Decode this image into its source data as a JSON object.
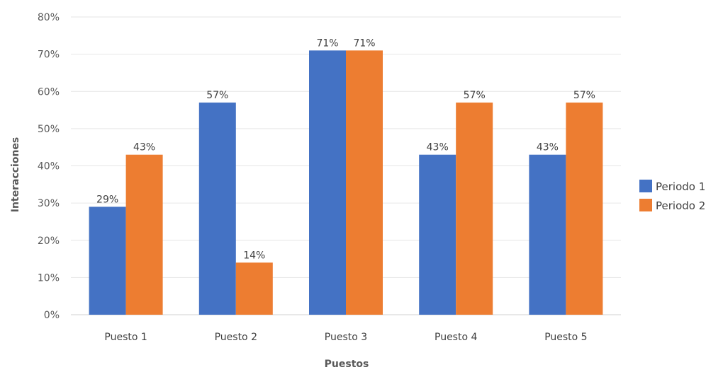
{
  "chart_data": {
    "type": "bar",
    "xlabel": "Puestos",
    "ylabel": "Interacciones",
    "categories": [
      "Puesto 1",
      "Puesto 2",
      "Puesto 3",
      "Puesto 4",
      "Puesto 5"
    ],
    "series": [
      {
        "name": "Periodo 1",
        "color": "#4472C4",
        "values": [
          29,
          57,
          71,
          43,
          43
        ],
        "labels": [
          "29%",
          "57%",
          "71%",
          "43%",
          "43%"
        ]
      },
      {
        "name": "Periodo 2",
        "color": "#ED7D31",
        "values": [
          43,
          14,
          71,
          57,
          57
        ],
        "labels": [
          "43%",
          "14%",
          "71%",
          "57%",
          "57%"
        ]
      }
    ],
    "ylim": [
      0,
      80
    ],
    "yticks": [
      0,
      10,
      20,
      30,
      40,
      50,
      60,
      70,
      80
    ],
    "ytick_labels": [
      "0%",
      "10%",
      "20%",
      "30%",
      "40%",
      "50%",
      "60%",
      "70%",
      "80%"
    ],
    "grid": true,
    "legend": "right"
  }
}
